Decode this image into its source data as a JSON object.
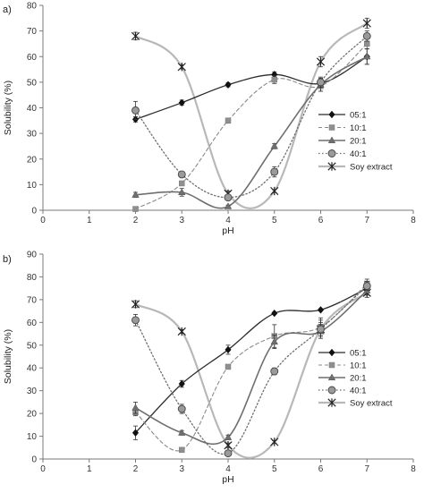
{
  "chart_data": [
    {
      "panel_label": "a)",
      "type": "line",
      "xlabel": "pH",
      "ylabel": "Solubility (%)",
      "xlim": [
        0,
        8
      ],
      "ylim": [
        0,
        80
      ],
      "xticks": [
        "0",
        "1",
        "2",
        "3",
        "4",
        "5",
        "6",
        "7",
        "8"
      ],
      "yticks": [
        "0",
        "10",
        "20",
        "30",
        "40",
        "50",
        "60",
        "70",
        "80"
      ],
      "grid": false,
      "legend_position": "right",
      "x": [
        2,
        3,
        4,
        5,
        6,
        7
      ],
      "series": [
        {
          "name": "05:1",
          "values": [
            35.5,
            42,
            49,
            53,
            49.5,
            60
          ],
          "errors": [
            1,
            1,
            0.8,
            1,
            2,
            3
          ],
          "color": "#2b2b2b",
          "marker": "diamond",
          "dash": "",
          "line_width": 1.3
        },
        {
          "name": "10:1",
          "values": [
            0.5,
            10.5,
            35,
            51,
            48.5,
            65
          ],
          "errors": [
            0.5,
            0.5,
            1,
            1.5,
            2,
            2
          ],
          "color": "#8a8a8a",
          "marker": "square",
          "dash": "4,3",
          "line_width": 1.1
        },
        {
          "name": "20:1",
          "values": [
            6,
            7,
            1.5,
            25,
            49,
            60
          ],
          "errors": [
            1,
            1.5,
            0.5,
            1,
            2.5,
            3
          ],
          "color": "#6f6f6f",
          "marker": "triangle",
          "dash": "",
          "line_width": 1.6
        },
        {
          "name": "40:1",
          "values": [
            39,
            14,
            5,
            15,
            50,
            68
          ],
          "errors": [
            3.5,
            0.5,
            1,
            2,
            2,
            2
          ],
          "color": "#6f6f6f",
          "marker": "circle",
          "dash": "1.5,2.5",
          "line_width": 1.3
        },
        {
          "name": "Soy extract",
          "values": [
            68,
            56,
            6.5,
            7.5,
            58,
            73
          ],
          "errors": [
            1.5,
            0.8,
            1,
            0.5,
            2,
            2
          ],
          "color": "#b8b8b8",
          "marker": "asterisk",
          "dash": "",
          "line_width": 2.2
        }
      ]
    },
    {
      "panel_label": "b)",
      "type": "line",
      "xlabel": "pH",
      "ylabel": "Solubility (%)",
      "xlim": [
        0,
        8
      ],
      "ylim": [
        0,
        90
      ],
      "xticks": [
        "0",
        "1",
        "2",
        "3",
        "4",
        "5",
        "6",
        "7",
        "8"
      ],
      "yticks": [
        "0",
        "10",
        "20",
        "30",
        "40",
        "50",
        "60",
        "70",
        "80",
        "90"
      ],
      "grid": false,
      "legend_position": "right",
      "x": [
        2,
        3,
        4,
        5,
        6,
        7
      ],
      "series": [
        {
          "name": "05:1",
          "values": [
            11.5,
            33,
            48,
            64,
            65.5,
            75
          ],
          "errors": [
            3,
            1.5,
            2,
            0.5,
            0.5,
            1.5
          ],
          "color": "#2b2b2b",
          "marker": "diamond",
          "dash": "",
          "line_width": 1.3
        },
        {
          "name": "10:1",
          "values": [
            20.5,
            4,
            40.5,
            54,
            58,
            77
          ],
          "errors": [
            1.5,
            0.5,
            1,
            5,
            4,
            2
          ],
          "color": "#8a8a8a",
          "marker": "square",
          "dash": "4,3",
          "line_width": 1.1
        },
        {
          "name": "20:1",
          "values": [
            22.5,
            11.5,
            9.5,
            51.5,
            56,
            74
          ],
          "errors": [
            2.5,
            1,
            1,
            3,
            3,
            2
          ],
          "color": "#6f6f6f",
          "marker": "triangle",
          "dash": "",
          "line_width": 1.6
        },
        {
          "name": "40:1",
          "values": [
            61,
            22,
            2.5,
            38.5,
            57,
            76
          ],
          "errors": [
            2.5,
            2,
            0.5,
            1.5,
            4,
            2
          ],
          "color": "#6f6f6f",
          "marker": "circle",
          "dash": "1.5,2.5",
          "line_width": 1.3
        },
        {
          "name": "Soy extract",
          "values": [
            68,
            56,
            6,
            7.5,
            57,
            73
          ],
          "errors": [
            1.5,
            0.8,
            1,
            0.5,
            3,
            2
          ],
          "color": "#b8b8b8",
          "marker": "asterisk",
          "dash": "",
          "line_width": 2.2
        }
      ]
    }
  ]
}
